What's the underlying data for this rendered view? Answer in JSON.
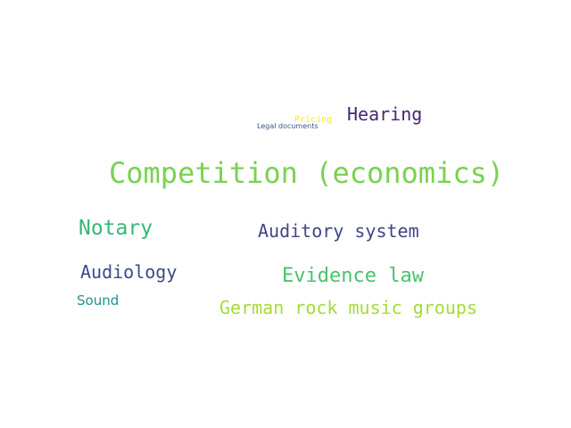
{
  "wordcloud": {
    "words": [
      {
        "text": "Competition (economics)",
        "color": "#7ad151"
      },
      {
        "text": "Hearing",
        "color": "#482576"
      },
      {
        "text": "Pricing",
        "color": "#fde725"
      },
      {
        "text": "Legal documents",
        "color": "#3b528b"
      },
      {
        "text": "Notary",
        "color": "#35b779"
      },
      {
        "text": "Auditory system",
        "color": "#414487"
      },
      {
        "text": "Audiology",
        "color": "#3e4989"
      },
      {
        "text": "Evidence law",
        "color": "#4ac16d"
      },
      {
        "text": "Sound",
        "color": "#21918c"
      },
      {
        "text": "German rock music groups",
        "color": "#a5db36"
      }
    ]
  }
}
